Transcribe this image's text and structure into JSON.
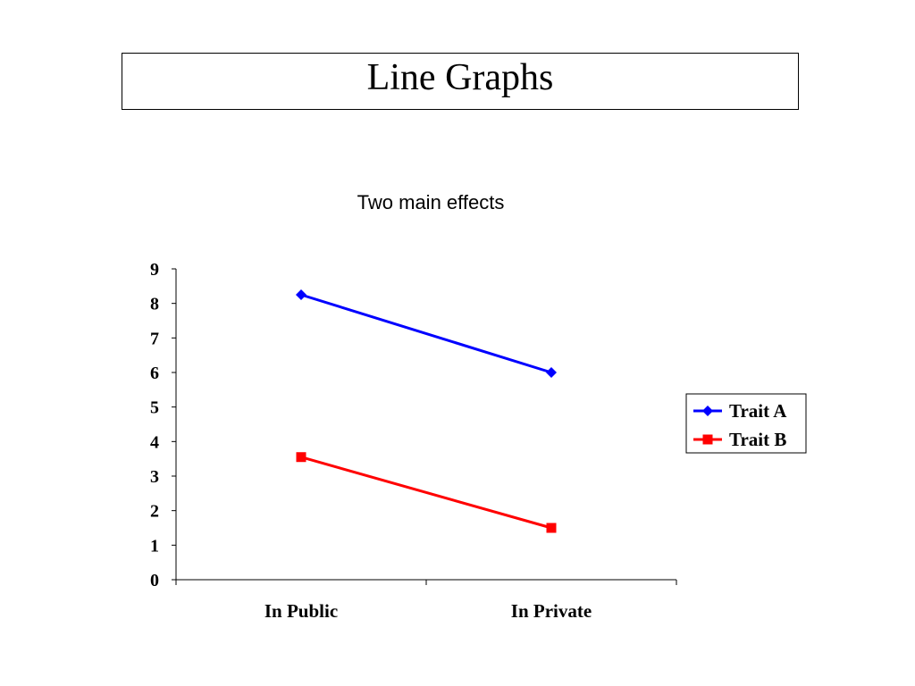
{
  "slide": {
    "title": "Line Graphs"
  },
  "chart_data": {
    "type": "line",
    "title": "Two main effects",
    "xlabel": "",
    "ylabel": "",
    "categories": [
      "In Public",
      "In Private"
    ],
    "ylim": [
      0,
      9
    ],
    "yticks": [
      0,
      1,
      2,
      3,
      4,
      5,
      6,
      7,
      8,
      9
    ],
    "grid": false,
    "legend_position": "right",
    "series": [
      {
        "name": "Trait A",
        "values": [
          8.25,
          6.0
        ],
        "color": "#0000FF",
        "marker": "diamond"
      },
      {
        "name": "Trait B",
        "values": [
          3.55,
          1.5
        ],
        "color": "#FF0000",
        "marker": "square"
      }
    ]
  }
}
